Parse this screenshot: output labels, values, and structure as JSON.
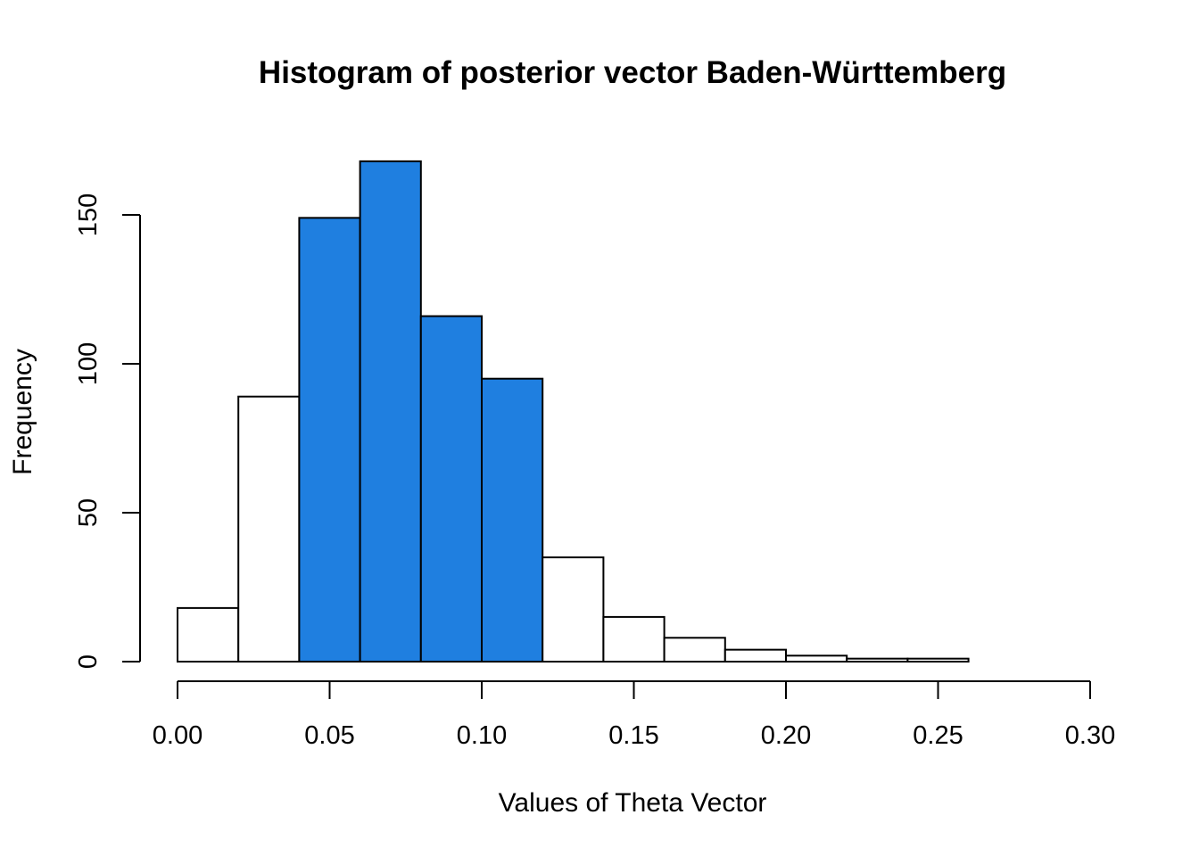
{
  "chart_data": {
    "type": "bar",
    "title": "Histogram of posterior vector Baden-Württemberg",
    "xlabel": "Values of Theta Vector",
    "ylabel": "Frequency",
    "bin_edges": [
      0.0,
      0.02,
      0.04,
      0.06,
      0.08,
      0.1,
      0.12,
      0.14,
      0.16,
      0.18,
      0.2,
      0.22,
      0.24,
      0.26
    ],
    "values": [
      18,
      89,
      149,
      168,
      116,
      95,
      35,
      15,
      8,
      4,
      2,
      1,
      1
    ],
    "highlighted": [
      false,
      false,
      true,
      true,
      true,
      true,
      false,
      false,
      false,
      false,
      false,
      false,
      false
    ],
    "xlim": [
      0.0,
      0.3
    ],
    "ylim": [
      0,
      150
    ],
    "x_ticks": [
      0.0,
      0.05,
      0.1,
      0.15,
      0.2,
      0.25,
      0.3
    ],
    "x_tick_labels": [
      "0.00",
      "0.05",
      "0.10",
      "0.15",
      "0.20",
      "0.25",
      "0.30"
    ],
    "y_ticks": [
      0,
      50,
      100,
      150
    ],
    "y_tick_labels": [
      "0",
      "50",
      "100",
      "150"
    ],
    "grid": false,
    "colors": {
      "highlight_fill": "#1f7fe0",
      "default_fill": "#ffffff",
      "stroke": "#000000"
    }
  }
}
